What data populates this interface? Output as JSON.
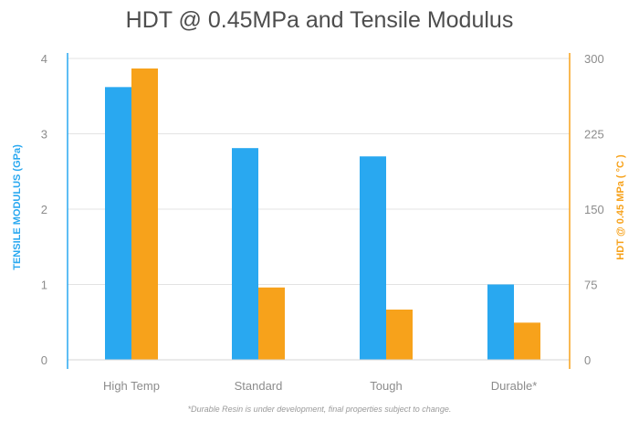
{
  "chart_data": {
    "type": "bar",
    "title": "HDT @ 0.45MPa and Tensile Modulus",
    "footnote": "*Durable Resin is under development, final properties subject to change.",
    "categories": [
      "High Temp",
      "Standard",
      "Tough",
      "Durable*"
    ],
    "series": [
      {
        "name": "TENSILE MODULUS (GPa)",
        "axis": "left",
        "color": "#29a8f0",
        "values": [
          3.62,
          2.81,
          2.7,
          1.0
        ]
      },
      {
        "name": "HDT @ 0.45 MPa ( °C )",
        "axis": "right",
        "color": "#f7a21b",
        "values": [
          290,
          72,
          50,
          37
        ]
      }
    ],
    "left_axis": {
      "label": "TENSILE MODULUS (GPa)",
      "ticks": [
        "0",
        "1",
        "2",
        "3",
        "4"
      ],
      "range": [
        0,
        4
      ],
      "color": "#29a8f0"
    },
    "right_axis": {
      "label": "HDT @ 0.45 MPa ( °C )",
      "ticks": [
        "0",
        "75",
        "150",
        "225",
        "300"
      ],
      "range": [
        0,
        300
      ],
      "color": "#f7a21b"
    },
    "grid": true,
    "legend": "none"
  }
}
